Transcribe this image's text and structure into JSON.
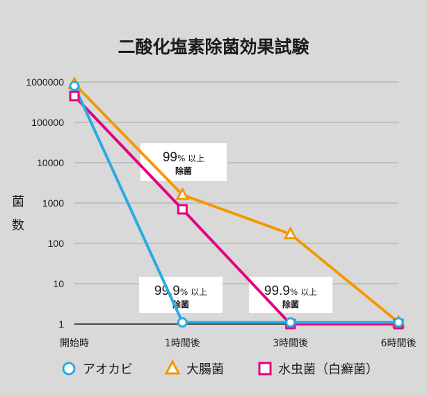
{
  "chart_data": {
    "type": "line",
    "title": "二酸化塩素除菌効果試験",
    "ylabel": "菌数",
    "xlabel": "",
    "y_scale": "log",
    "ylim": [
      1,
      1000000
    ],
    "grid": true,
    "legend_position": "bottom",
    "categories": [
      "開始時",
      "1時間後",
      "3時間後",
      "6時間後"
    ],
    "y_ticks": [
      "1",
      "10",
      "100",
      "1000",
      "10000",
      "100000",
      "1000000"
    ],
    "series": [
      {
        "name": "アオカビ",
        "marker": "circle",
        "color": "#29abe2",
        "values": [
          800000,
          1.1,
          1.1,
          1.1
        ]
      },
      {
        "name": "大腸菌",
        "marker": "triangle",
        "color": "#f39800",
        "values": [
          900000,
          1600,
          170,
          1.1
        ]
      },
      {
        "name": "水虫菌（白癬菌）",
        "marker": "square",
        "color": "#e4007f",
        "values": [
          450000,
          700,
          1,
          1
        ]
      }
    ],
    "annotations": [
      {
        "pct": "99",
        "unit": "% 以上",
        "line2": "除菌"
      },
      {
        "pct": "99.9",
        "unit": "% 以上",
        "line2": "除菌"
      },
      {
        "pct": "99.9",
        "unit": "% 以上",
        "line2": "除菌"
      }
    ]
  }
}
